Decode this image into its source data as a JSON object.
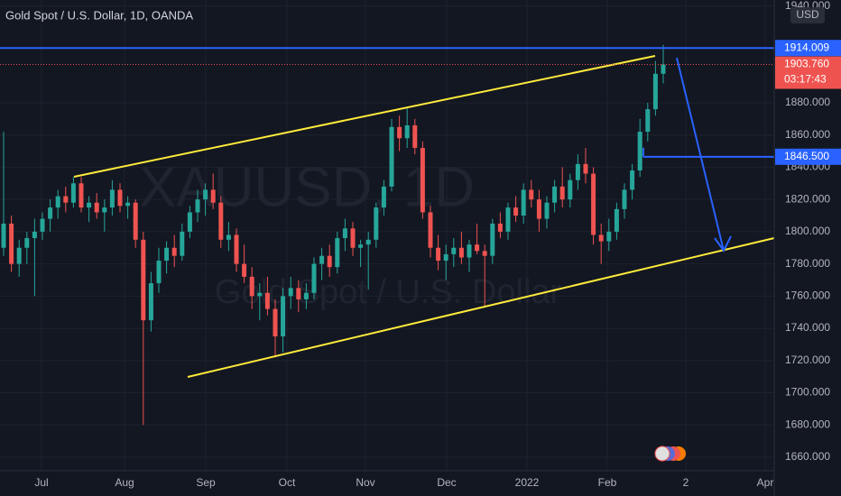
{
  "chart_data": {
    "type": "candlestick",
    "title": "Gold Spot / U.S. Dollar, 1D, OANDA",
    "watermark": "XAUUSD, 1D",
    "watermark_sub": "Gold Spot / U.S. Dollar",
    "currency": "USD",
    "up_color": "#26a69a",
    "down_color": "#ef5350",
    "ylim": [
      1651.6,
      1943.8
    ],
    "yticks": [
      {
        "value": 1660,
        "label": "1660.000"
      },
      {
        "value": 1680,
        "label": "1680.000"
      },
      {
        "value": 1700,
        "label": "1700.000"
      },
      {
        "value": 1720,
        "label": "1720.000"
      },
      {
        "value": 1740,
        "label": "1740.000"
      },
      {
        "value": 1760,
        "label": "1760.000"
      },
      {
        "value": 1780,
        "label": "1780.000"
      },
      {
        "value": 1800,
        "label": "1800.000"
      },
      {
        "value": 1820,
        "label": "1820.000"
      },
      {
        "value": 1840,
        "label": "1840.000"
      },
      {
        "value": 1860,
        "label": "1860.000"
      },
      {
        "value": 1880,
        "label": "1880.000"
      },
      {
        "value": 1940,
        "label": "1940.000"
      }
    ],
    "x_labels": [
      "Jul",
      "Aug",
      "Sep",
      "Oct",
      "Nov",
      "Dec",
      "2022",
      "Feb",
      "2",
      "Apr"
    ],
    "levels": [
      {
        "value": 1914.009,
        "label": "1914.009"
      },
      {
        "value": 1846.5,
        "label": "1846.500"
      }
    ],
    "last_price": {
      "value": 1903.76,
      "label": "1903.760"
    },
    "countdown": "03:17:43",
    "candles": [
      [
        1790,
        1862,
        1785,
        1805
      ],
      [
        1805,
        1810,
        1775,
        1780
      ],
      [
        1780,
        1795,
        1772,
        1790
      ],
      [
        1790,
        1800,
        1780,
        1796
      ],
      [
        1796,
        1808,
        1760,
        1800
      ],
      [
        1800,
        1812,
        1795,
        1808
      ],
      [
        1808,
        1820,
        1800,
        1815
      ],
      [
        1815,
        1826,
        1808,
        1822
      ],
      [
        1822,
        1828,
        1812,
        1818
      ],
      [
        1818,
        1834,
        1815,
        1830
      ],
      [
        1830,
        1834,
        1812,
        1815
      ],
      [
        1815,
        1822,
        1806,
        1818
      ],
      [
        1818,
        1824,
        1808,
        1812
      ],
      [
        1812,
        1820,
        1800,
        1815
      ],
      [
        1815,
        1832,
        1810,
        1826
      ],
      [
        1826,
        1830,
        1812,
        1816
      ],
      [
        1816,
        1822,
        1808,
        1818
      ],
      [
        1818,
        1820,
        1790,
        1795
      ],
      [
        1795,
        1800,
        1680,
        1745
      ],
      [
        1745,
        1775,
        1738,
        1768
      ],
      [
        1768,
        1790,
        1762,
        1782
      ],
      [
        1782,
        1794,
        1774,
        1790
      ],
      [
        1790,
        1798,
        1778,
        1785
      ],
      [
        1785,
        1805,
        1782,
        1800
      ],
      [
        1800,
        1816,
        1796,
        1812
      ],
      [
        1812,
        1826,
        1806,
        1820
      ],
      [
        1820,
        1830,
        1810,
        1826
      ],
      [
        1826,
        1836,
        1814,
        1818
      ],
      [
        1818,
        1822,
        1790,
        1795
      ],
      [
        1795,
        1806,
        1788,
        1798
      ],
      [
        1798,
        1802,
        1775,
        1780
      ],
      [
        1780,
        1792,
        1768,
        1772
      ],
      [
        1772,
        1778,
        1752,
        1760
      ],
      [
        1760,
        1768,
        1745,
        1762
      ],
      [
        1762,
        1772,
        1748,
        1752
      ],
      [
        1752,
        1758,
        1722,
        1735
      ],
      [
        1735,
        1765,
        1725,
        1760
      ],
      [
        1760,
        1772,
        1752,
        1765
      ],
      [
        1765,
        1770,
        1750,
        1758
      ],
      [
        1758,
        1768,
        1752,
        1762
      ],
      [
        1762,
        1784,
        1758,
        1780
      ],
      [
        1780,
        1790,
        1770,
        1785
      ],
      [
        1785,
        1792,
        1772,
        1778
      ],
      [
        1778,
        1800,
        1774,
        1796
      ],
      [
        1796,
        1808,
        1788,
        1802
      ],
      [
        1802,
        1806,
        1785,
        1790
      ],
      [
        1790,
        1795,
        1778,
        1792
      ],
      [
        1792,
        1800,
        1764,
        1795
      ],
      [
        1795,
        1818,
        1790,
        1815
      ],
      [
        1815,
        1832,
        1810,
        1828
      ],
      [
        1828,
        1870,
        1825,
        1865
      ],
      [
        1865,
        1872,
        1850,
        1858
      ],
      [
        1858,
        1877,
        1852,
        1866
      ],
      [
        1866,
        1870,
        1848,
        1852
      ],
      [
        1852,
        1856,
        1808,
        1812
      ],
      [
        1812,
        1816,
        1784,
        1790
      ],
      [
        1790,
        1798,
        1776,
        1782
      ],
      [
        1782,
        1792,
        1770,
        1786
      ],
      [
        1786,
        1796,
        1778,
        1790
      ],
      [
        1790,
        1800,
        1780,
        1784
      ],
      [
        1784,
        1795,
        1775,
        1792
      ],
      [
        1792,
        1805,
        1786,
        1788
      ],
      [
        1788,
        1792,
        1753,
        1785
      ],
      [
        1785,
        1808,
        1780,
        1805
      ],
      [
        1805,
        1812,
        1796,
        1800
      ],
      [
        1800,
        1818,
        1795,
        1815
      ],
      [
        1815,
        1822,
        1806,
        1810
      ],
      [
        1810,
        1830,
        1805,
        1826
      ],
      [
        1826,
        1832,
        1815,
        1820
      ],
      [
        1820,
        1826,
        1800,
        1808
      ],
      [
        1808,
        1822,
        1802,
        1818
      ],
      [
        1818,
        1832,
        1812,
        1828
      ],
      [
        1828,
        1840,
        1815,
        1820
      ],
      [
        1820,
        1836,
        1815,
        1832
      ],
      [
        1832,
        1848,
        1826,
        1842
      ],
      [
        1842,
        1852,
        1830,
        1836
      ],
      [
        1836,
        1840,
        1792,
        1798
      ],
      [
        1798,
        1805,
        1780,
        1794
      ],
      [
        1794,
        1808,
        1788,
        1800
      ],
      [
        1800,
        1818,
        1795,
        1814
      ],
      [
        1814,
        1830,
        1808,
        1826
      ],
      [
        1826,
        1842,
        1820,
        1838
      ],
      [
        1838,
        1870,
        1834,
        1862
      ],
      [
        1862,
        1880,
        1856,
        1876
      ],
      [
        1876,
        1906,
        1872,
        1898
      ],
      [
        1898,
        1916,
        1892,
        1903.76
      ]
    ]
  }
}
